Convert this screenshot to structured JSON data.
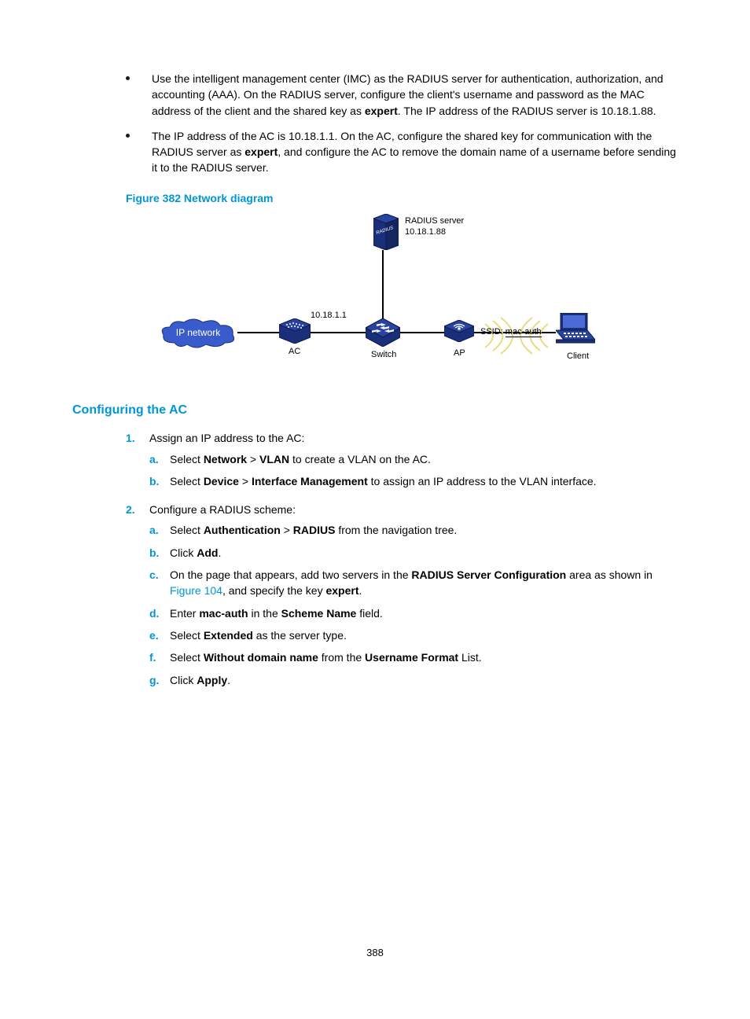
{
  "bullets": [
    {
      "pre": "Use the intelligent management center (IMC) as the RADIUS server for authentication, authorization, and accounting (AAA). On the RADIUS server, configure the client's username and password as the MAC address of the client and the shared key as ",
      "bold1": "expert",
      "post": ". The IP address of the RADIUS server is 10.18.1.88."
    },
    {
      "pre": "The IP address of the AC is 10.18.1.1. On the AC, configure the shared key for communication with the RADIUS server as ",
      "bold1": "expert",
      "post": ", and configure the AC to remove the domain name of a username before sending it to the RADIUS server."
    }
  ],
  "figure_caption": "Figure 382 Network diagram",
  "diagram": {
    "cloud_label": "IP network",
    "ac_ip": "10.18.1.1",
    "ac_label": "AC",
    "switch_label": "Switch",
    "ap_label": "AP",
    "ssid_label": "SSID:",
    "ssid_value": "mac-auth",
    "client_label": "Client",
    "server_label_1": "RADIUS server",
    "server_label_2": "10.18.1.88",
    "colors": {
      "device_fill": "#1a2f7a",
      "device_stroke": "#0d1a4a",
      "cloud_fill": "#3a5bcc",
      "cloud_stroke": "#1a2f7a",
      "wifi": "#e8d872",
      "line": "#000000"
    }
  },
  "section_heading": "Configuring the AC",
  "steps": [
    {
      "marker": "1.",
      "text": "Assign an IP address to the AC:",
      "sub": [
        {
          "m": "a.",
          "parts": [
            {
              "t": "Select "
            },
            {
              "b": "Network"
            },
            {
              "t": " > "
            },
            {
              "b": "VLAN"
            },
            {
              "t": " to create a VLAN on the AC."
            }
          ]
        },
        {
          "m": "b.",
          "parts": [
            {
              "t": "Select "
            },
            {
              "b": "Device"
            },
            {
              "t": " > "
            },
            {
              "b": "Interface Management"
            },
            {
              "t": " to assign an IP address to the VLAN interface."
            }
          ]
        }
      ]
    },
    {
      "marker": "2.",
      "text": "Configure a RADIUS scheme:",
      "sub": [
        {
          "m": "a.",
          "parts": [
            {
              "t": "Select "
            },
            {
              "b": "Authentication"
            },
            {
              "t": " > "
            },
            {
              "b": "RADIUS"
            },
            {
              "t": " from the navigation tree."
            }
          ]
        },
        {
          "m": "b.",
          "parts": [
            {
              "t": "Click "
            },
            {
              "b": "Add"
            },
            {
              "t": "."
            }
          ]
        },
        {
          "m": "c.",
          "parts": [
            {
              "t": "On the page that appears, add two servers in the "
            },
            {
              "b": "RADIUS Server Configuration"
            },
            {
              "t": " area as shown in "
            },
            {
              "link": "Figure 104"
            },
            {
              "t": ", and specify the key "
            },
            {
              "b": "expert"
            },
            {
              "t": "."
            }
          ]
        },
        {
          "m": "d.",
          "parts": [
            {
              "t": "Enter "
            },
            {
              "b": "mac-auth"
            },
            {
              "t": " in the "
            },
            {
              "b": "Scheme Name"
            },
            {
              "t": " field."
            }
          ]
        },
        {
          "m": "e.",
          "parts": [
            {
              "t": "Select "
            },
            {
              "b": "Extended"
            },
            {
              "t": " as the server type."
            }
          ]
        },
        {
          "m": "f.",
          "parts": [
            {
              "t": "Select "
            },
            {
              "b": "Without domain name"
            },
            {
              "t": " from the "
            },
            {
              "b": "Username Format"
            },
            {
              "t": " List."
            }
          ]
        },
        {
          "m": "g.",
          "parts": [
            {
              "t": "Click "
            },
            {
              "b": "Apply"
            },
            {
              "t": "."
            }
          ]
        }
      ]
    }
  ],
  "page_number": "388"
}
